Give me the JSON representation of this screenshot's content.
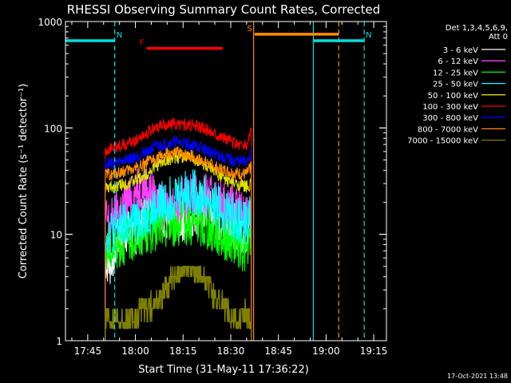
{
  "chart_data": {
    "type": "line",
    "title": "RHESSI Observing Summary Count Rates, Corrected",
    "xlabel": "Start Time (31-May-11 17:36:22)",
    "ylabel": "Corrected Count Rate (s⁻¹ detector⁻¹)",
    "footer": "17-Oct-2021 13:48",
    "x_range_minutes": [
      -22,
      79
    ],
    "x_ticks": [
      {
        "m": -15,
        "label": "17:45"
      },
      {
        "m": 0,
        "label": "18:00"
      },
      {
        "m": 15,
        "label": "18:15"
      },
      {
        "m": 30,
        "label": "18:30"
      },
      {
        "m": 45,
        "label": "18:45"
      },
      {
        "m": 60,
        "label": "19:00"
      },
      {
        "m": 75,
        "label": "19:15"
      }
    ],
    "y_scale": "log",
    "ylim": [
      1,
      1000
    ],
    "y_ticks": [
      {
        "v": 1,
        "label": "1"
      },
      {
        "v": 10,
        "label": "10"
      },
      {
        "v": 100,
        "label": "100"
      },
      {
        "v": 1000,
        "label": "1000"
      }
    ],
    "legend": {
      "header": [
        "Det 1,3,4,5,6,9,",
        "Att 0"
      ],
      "placement": "right"
    },
    "flags": [
      {
        "name": "N",
        "color": "#00e0e0",
        "style": "solid",
        "x_start": -22,
        "x_end": -6.5,
        "level": 660
      },
      {
        "name": "N",
        "color": "#00e0e0",
        "style": "solid",
        "x_start": 56,
        "x_end": 72,
        "level": 660
      },
      {
        "name": "F",
        "color": "#ff0000",
        "style": "solid",
        "x_start": 3.5,
        "x_end": 27.5,
        "level": 560
      },
      {
        "name": "S",
        "color": "#ff8c00",
        "style": "solid",
        "x_start": 37.5,
        "x_end": 64,
        "level": 760
      }
    ],
    "vlines": [
      {
        "x": -6.5,
        "color": "#00e0e0",
        "style": "dashed"
      },
      {
        "x": 56,
        "color": "#00e0e0",
        "style": "solid"
      },
      {
        "x": 72,
        "color": "#00e0e0",
        "style": "dashed"
      },
      {
        "x": 37.2,
        "color": "#ff8c00",
        "style": "solid"
      },
      {
        "x": 64,
        "color": "#ff8c00",
        "style": "dashed"
      }
    ],
    "series": [
      {
        "name": "3 - 6 keV",
        "color": "#ffffff",
        "x": [
          -9.5,
          -8,
          -6.5,
          -5,
          -3,
          -1,
          1,
          3,
          5,
          7,
          9,
          11,
          13,
          15,
          17,
          19,
          21,
          23,
          25,
          27,
          29,
          31,
          33,
          35,
          36.5
        ],
        "y": [
          5.8,
          5.2,
          7,
          9.5,
          11,
          9.5,
          11,
          16,
          27,
          21,
          15,
          12,
          13,
          14,
          15,
          16,
          18,
          17,
          14,
          13,
          12,
          12,
          11,
          10,
          16
        ]
      },
      {
        "name": "6 - 12 keV",
        "color": "#ff40ff",
        "x": [
          -9.5,
          -8,
          -6.5,
          -5,
          -3,
          -1,
          1,
          3,
          5,
          7,
          9,
          11,
          13,
          15,
          17,
          19,
          21,
          23,
          25,
          27,
          29,
          31,
          33,
          35,
          36.5
        ],
        "y": [
          14,
          13,
          15,
          17,
          20,
          22,
          26,
          30,
          25,
          19,
          17,
          19,
          20,
          21,
          22,
          23,
          23,
          22,
          21,
          20,
          18,
          17,
          16,
          16,
          20
        ]
      },
      {
        "name": "12 - 25 keV",
        "color": "#00ff00",
        "x": [
          -9.5,
          -8,
          -6.5,
          -5,
          -3,
          -1,
          1,
          3,
          5,
          7,
          9,
          11,
          13,
          15,
          17,
          19,
          21,
          23,
          25,
          27,
          29,
          31,
          33,
          35,
          36.5
        ],
        "y": [
          6.8,
          7.2,
          7.6,
          8,
          8.6,
          9,
          9.6,
          10.2,
          10.8,
          11.4,
          12,
          12.3,
          12.6,
          12.8,
          12.8,
          12.5,
          12,
          11.3,
          10.5,
          9.8,
          9,
          8.3,
          7.6,
          7,
          7.6
        ]
      },
      {
        "name": "25 - 50 keV",
        "color": "#00ffff",
        "x": [
          -9.5,
          -8,
          -6.5,
          -5,
          -3,
          -1,
          1,
          3,
          5,
          7,
          9,
          11,
          13,
          15,
          17,
          19,
          21,
          23,
          25,
          27,
          29,
          31,
          33,
          35,
          36.5
        ],
        "y": [
          10.2,
          10.6,
          11,
          11.5,
          12,
          12.5,
          13.5,
          15,
          16,
          18,
          20,
          22,
          24,
          25,
          25.5,
          24.5,
          23,
          21,
          19,
          17,
          15.5,
          14.5,
          13.5,
          13,
          15
        ]
      },
      {
        "name": "50 - 100 keV",
        "color": "#e0e000",
        "x": [
          -9.5,
          -8,
          -6.5,
          -5,
          -3,
          -1,
          1,
          3,
          5,
          7,
          9,
          11,
          13,
          15,
          17,
          19,
          21,
          23,
          25,
          27,
          29,
          31,
          33,
          35,
          36.5
        ],
        "y": [
          27,
          27.5,
          28,
          29,
          30,
          31,
          33,
          36,
          40,
          45,
          48,
          51,
          53,
          54,
          53,
          50,
          46,
          42,
          38,
          35,
          32,
          30,
          29,
          28,
          30
        ]
      },
      {
        "name": "100 - 300 keV",
        "color": "#ff0000",
        "x": [
          -9.5,
          -8,
          -6.5,
          -5,
          -3,
          -1,
          1,
          3,
          5,
          7,
          9,
          11,
          13,
          15,
          17,
          19,
          21,
          23,
          25,
          27,
          29,
          31,
          33,
          35,
          36.5
        ],
        "y": [
          62,
          63,
          65,
          67,
          70,
          74,
          80,
          88,
          96,
          102,
          106,
          108,
          109,
          108,
          106,
          103,
          99,
          95,
          90,
          84,
          78,
          73,
          70,
          68,
          100
        ]
      },
      {
        "name": "300 - 800 keV",
        "color": "#0000ff",
        "x": [
          -9.5,
          -8,
          -6.5,
          -5,
          -3,
          -1,
          1,
          3,
          5,
          7,
          9,
          11,
          13,
          15,
          17,
          19,
          21,
          23,
          25,
          27,
          29,
          31,
          33,
          35,
          36.5
        ],
        "y": [
          46,
          46.5,
          47,
          48,
          50,
          52,
          55,
          59,
          63,
          67,
          70,
          72,
          73,
          72,
          70,
          67,
          64,
          60,
          57,
          54,
          51,
          49,
          48,
          47,
          60
        ]
      },
      {
        "name": "800 - 7000 keV",
        "color": "#ff8c00",
        "x": [
          -9.5,
          -8,
          -6.5,
          -5,
          -3,
          -1,
          1,
          3,
          5,
          7,
          9,
          11,
          13,
          15,
          17,
          19,
          21,
          23,
          25,
          27,
          29,
          31,
          33,
          35,
          36.5
        ],
        "y": [
          36,
          36.5,
          37,
          38,
          39,
          41,
          43,
          46,
          49,
          52,
          55,
          57,
          58,
          57,
          55,
          52,
          49,
          46,
          43,
          41,
          39,
          38,
          37,
          36.5,
          45
        ]
      },
      {
        "name": "7000 - 15000 keV",
        "color": "#808000",
        "x": [
          -9.5,
          -7.5,
          -5.5,
          -3.5,
          -1.5,
          0.5,
          2.5,
          4.5,
          6.5,
          8.5,
          10.5,
          12.5,
          14.5,
          16.5,
          18.5,
          20.5,
          22.5,
          24.5,
          26.5,
          28.5,
          30.5,
          32.5,
          34.5,
          36.5
        ],
        "y": [
          1.6,
          1.8,
          1.5,
          1.3,
          1.6,
          1.7,
          2,
          2.1,
          2.3,
          2.7,
          3.5,
          4,
          4.6,
          5,
          4.6,
          4.3,
          3.5,
          2.6,
          2.3,
          2,
          1.7,
          1.5,
          1.8,
          1.5
        ]
      }
    ]
  }
}
